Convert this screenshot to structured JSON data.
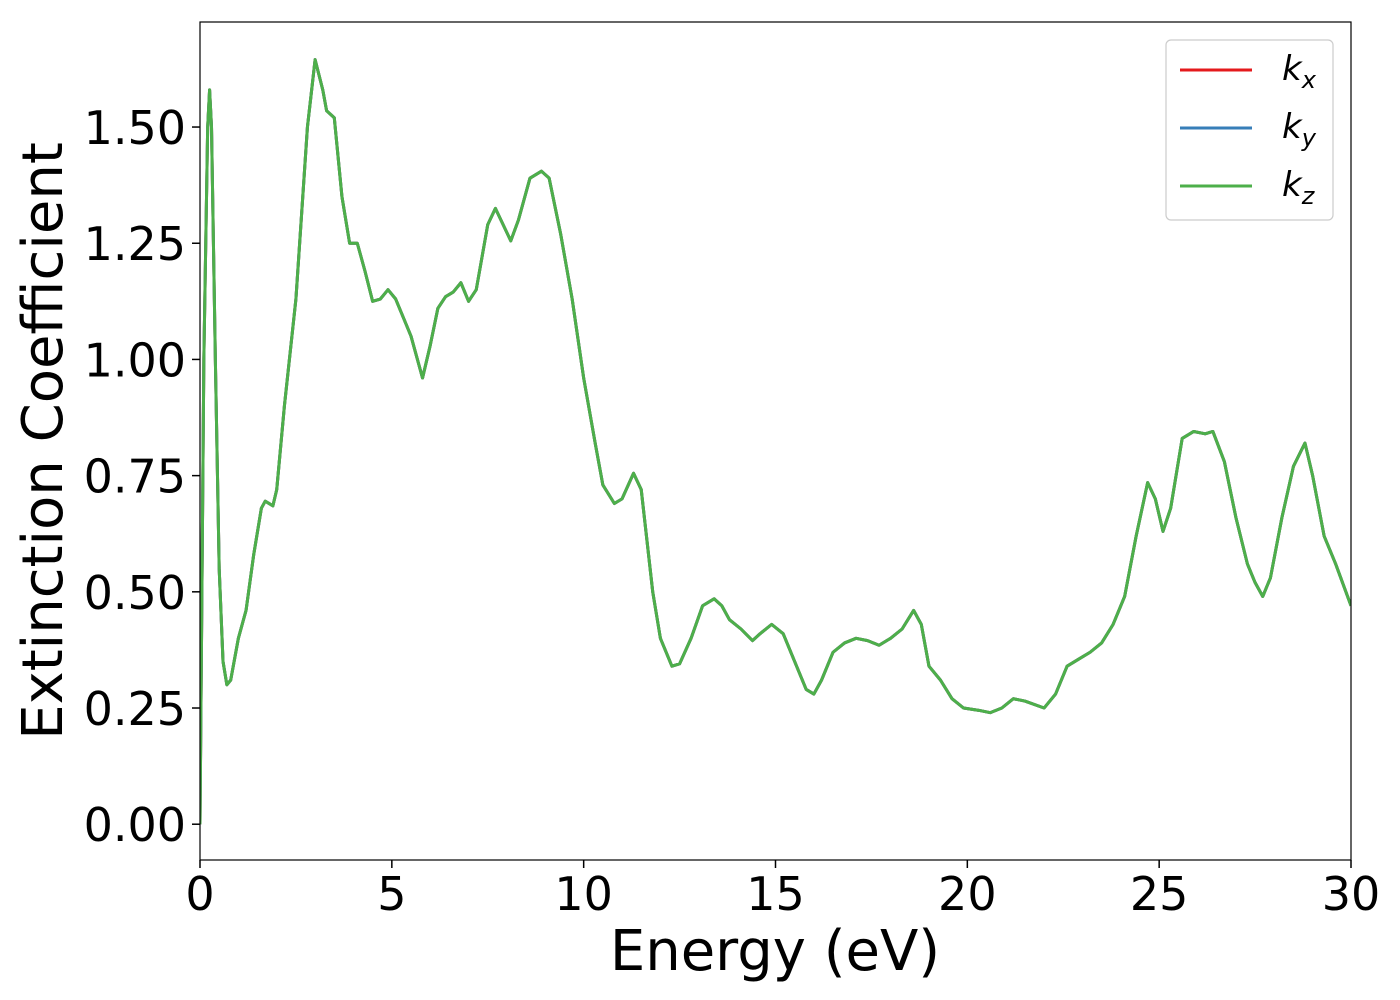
{
  "chart_data": {
    "type": "line",
    "xlabel": "Energy (eV)",
    "ylabel": "Extinction Coefficient",
    "xlim": [
      0,
      30
    ],
    "ylim": [
      -0.077,
      1.726
    ],
    "xticks": [
      0,
      5,
      10,
      15,
      20,
      25,
      30
    ],
    "yticks": [
      {
        "value": 0,
        "label": "0.00"
      },
      {
        "value": 0.25,
        "label": "0.25"
      },
      {
        "value": 0.5,
        "label": "0.50"
      },
      {
        "value": 0.75,
        "label": "0.75"
      },
      {
        "value": 1,
        "label": "1.00"
      },
      {
        "value": 1.25,
        "label": "1.25"
      },
      {
        "value": 1.5,
        "label": "1.50"
      }
    ],
    "legend": "upper right",
    "grid": false,
    "x": [
      0,
      0.1,
      0.2,
      0.25,
      0.3,
      0.4,
      0.5,
      0.6,
      0.7,
      0.8,
      1.0,
      1.2,
      1.4,
      1.6,
      1.7,
      1.9,
      2.0,
      2.2,
      2.5,
      2.8,
      3.0,
      3.2,
      3.3,
      3.5,
      3.7,
      3.9,
      4.1,
      4.3,
      4.5,
      4.7,
      4.9,
      5.1,
      5.3,
      5.5,
      5.8,
      6.0,
      6.2,
      6.4,
      6.6,
      6.8,
      7.0,
      7.2,
      7.5,
      7.7,
      7.9,
      8.1,
      8.3,
      8.6,
      8.9,
      9.1,
      9.4,
      9.7,
      10.0,
      10.3,
      10.5,
      10.8,
      11.0,
      11.3,
      11.5,
      11.8,
      12.0,
      12.3,
      12.5,
      12.8,
      13.1,
      13.4,
      13.6,
      13.8,
      14.1,
      14.4,
      14.6,
      14.9,
      15.2,
      15.5,
      15.8,
      16.0,
      16.2,
      16.5,
      16.8,
      17.1,
      17.4,
      17.7,
      18.0,
      18.3,
      18.6,
      18.8,
      19.0,
      19.3,
      19.6,
      19.9,
      20.3,
      20.6,
      20.9,
      21.2,
      21.5,
      22.0,
      22.3,
      22.6,
      22.9,
      23.2,
      23.5,
      23.8,
      24.1,
      24.4,
      24.7,
      24.9,
      25.1,
      25.3,
      25.6,
      25.9,
      26.2,
      26.4,
      26.7,
      27.0,
      27.3,
      27.5,
      27.7,
      27.9,
      28.2,
      28.5,
      28.8,
      29.0,
      29.3,
      29.6,
      30.0
    ],
    "series": [
      {
        "name": "kx",
        "color": "#e41a1c",
        "values": [
          0,
          1.0,
          1.5,
          1.58,
          1.5,
          1.0,
          0.55,
          0.35,
          0.3,
          0.31,
          0.4,
          0.46,
          0.58,
          0.68,
          0.695,
          0.685,
          0.72,
          0.9,
          1.13,
          1.5,
          1.645,
          1.58,
          1.535,
          1.52,
          1.35,
          1.25,
          1.25,
          1.19,
          1.125,
          1.13,
          1.15,
          1.13,
          1.09,
          1.05,
          0.96,
          1.03,
          1.11,
          1.135,
          1.145,
          1.165,
          1.125,
          1.15,
          1.29,
          1.325,
          1.29,
          1.255,
          1.3,
          1.39,
          1.405,
          1.39,
          1.27,
          1.13,
          0.96,
          0.82,
          0.73,
          0.69,
          0.7,
          0.755,
          0.72,
          0.5,
          0.4,
          0.34,
          0.345,
          0.4,
          0.47,
          0.485,
          0.47,
          0.44,
          0.42,
          0.395,
          0.41,
          0.43,
          0.41,
          0.35,
          0.29,
          0.28,
          0.31,
          0.37,
          0.39,
          0.4,
          0.395,
          0.385,
          0.4,
          0.42,
          0.46,
          0.43,
          0.34,
          0.31,
          0.27,
          0.25,
          0.245,
          0.24,
          0.25,
          0.27,
          0.265,
          0.25,
          0.28,
          0.34,
          0.355,
          0.37,
          0.39,
          0.43,
          0.49,
          0.62,
          0.735,
          0.7,
          0.63,
          0.68,
          0.83,
          0.845,
          0.84,
          0.845,
          0.78,
          0.66,
          0.56,
          0.52,
          0.49,
          0.53,
          0.66,
          0.77,
          0.82,
          0.75,
          0.62,
          0.56,
          0.47
        ]
      },
      {
        "name": "ky",
        "color": "#377eb8",
        "values": [
          0,
          1.0,
          1.5,
          1.58,
          1.5,
          1.0,
          0.55,
          0.35,
          0.3,
          0.31,
          0.4,
          0.46,
          0.58,
          0.68,
          0.695,
          0.685,
          0.72,
          0.9,
          1.13,
          1.5,
          1.645,
          1.58,
          1.535,
          1.52,
          1.35,
          1.25,
          1.25,
          1.19,
          1.125,
          1.13,
          1.15,
          1.13,
          1.09,
          1.05,
          0.96,
          1.03,
          1.11,
          1.135,
          1.145,
          1.165,
          1.125,
          1.15,
          1.29,
          1.325,
          1.29,
          1.255,
          1.3,
          1.39,
          1.405,
          1.39,
          1.27,
          1.13,
          0.96,
          0.82,
          0.73,
          0.69,
          0.7,
          0.755,
          0.72,
          0.5,
          0.4,
          0.34,
          0.345,
          0.4,
          0.47,
          0.485,
          0.47,
          0.44,
          0.42,
          0.395,
          0.41,
          0.43,
          0.41,
          0.35,
          0.29,
          0.28,
          0.31,
          0.37,
          0.39,
          0.4,
          0.395,
          0.385,
          0.4,
          0.42,
          0.46,
          0.43,
          0.34,
          0.31,
          0.27,
          0.25,
          0.245,
          0.24,
          0.25,
          0.27,
          0.265,
          0.25,
          0.28,
          0.34,
          0.355,
          0.37,
          0.39,
          0.43,
          0.49,
          0.62,
          0.735,
          0.7,
          0.63,
          0.68,
          0.83,
          0.845,
          0.84,
          0.845,
          0.78,
          0.66,
          0.56,
          0.52,
          0.49,
          0.53,
          0.66,
          0.77,
          0.82,
          0.75,
          0.62,
          0.56,
          0.47
        ]
      },
      {
        "name": "kz",
        "color": "#4daf4a",
        "values": [
          0,
          1.0,
          1.5,
          1.58,
          1.5,
          1.0,
          0.55,
          0.35,
          0.3,
          0.31,
          0.4,
          0.46,
          0.58,
          0.68,
          0.695,
          0.685,
          0.72,
          0.9,
          1.13,
          1.5,
          1.645,
          1.58,
          1.535,
          1.52,
          1.35,
          1.25,
          1.25,
          1.19,
          1.125,
          1.13,
          1.15,
          1.13,
          1.09,
          1.05,
          0.96,
          1.03,
          1.11,
          1.135,
          1.145,
          1.165,
          1.125,
          1.15,
          1.29,
          1.325,
          1.29,
          1.255,
          1.3,
          1.39,
          1.405,
          1.39,
          1.27,
          1.13,
          0.96,
          0.82,
          0.73,
          0.69,
          0.7,
          0.755,
          0.72,
          0.5,
          0.4,
          0.34,
          0.345,
          0.4,
          0.47,
          0.485,
          0.47,
          0.44,
          0.42,
          0.395,
          0.41,
          0.43,
          0.41,
          0.35,
          0.29,
          0.28,
          0.31,
          0.37,
          0.39,
          0.4,
          0.395,
          0.385,
          0.4,
          0.42,
          0.46,
          0.43,
          0.34,
          0.31,
          0.27,
          0.25,
          0.245,
          0.24,
          0.25,
          0.27,
          0.265,
          0.25,
          0.28,
          0.34,
          0.355,
          0.37,
          0.39,
          0.43,
          0.49,
          0.62,
          0.735,
          0.7,
          0.63,
          0.68,
          0.83,
          0.845,
          0.84,
          0.845,
          0.78,
          0.66,
          0.56,
          0.52,
          0.49,
          0.53,
          0.66,
          0.77,
          0.82,
          0.75,
          0.62,
          0.56,
          0.47
        ]
      }
    ]
  }
}
